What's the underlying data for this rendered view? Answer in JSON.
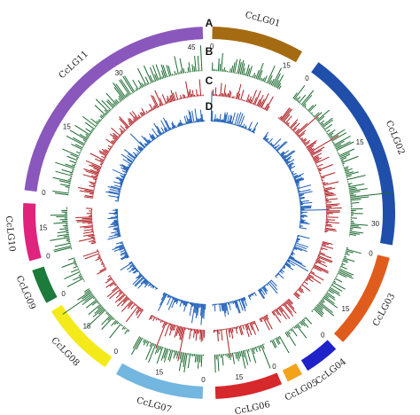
{
  "linkage_groups": [
    {
      "name": "CcLG01",
      "color": "#a56b12",
      "ticks": [
        "0",
        "15"
      ]
    },
    {
      "name": "CcLG02",
      "color": "#1f4faa",
      "ticks": [
        "0",
        "15",
        "30"
      ]
    },
    {
      "name": "CcLG03",
      "color": "#e05c1c",
      "ticks": [
        "0",
        "15"
      ]
    },
    {
      "name": "CcLG04",
      "color": "#1f22c8",
      "ticks": [
        "0"
      ]
    },
    {
      "name": "CcLG05",
      "color": "#f3a31a",
      "ticks": [
        "0"
      ]
    },
    {
      "name": "CcLG06",
      "color": "#d7282c",
      "ticks": [
        "0",
        "15"
      ]
    },
    {
      "name": "CcLG07",
      "color": "#73b6e0",
      "ticks": [
        "0",
        "15"
      ]
    },
    {
      "name": "CcLG08",
      "color": "#f4ea1a",
      "ticks": [
        "0",
        "15"
      ]
    },
    {
      "name": "CcLG09",
      "color": "#1c7a3b",
      "ticks": [
        "0"
      ]
    },
    {
      "name": "CcLG10",
      "color": "#e0237c",
      "ticks": [
        "0",
        "15"
      ]
    },
    {
      "name": "CcLG11",
      "color": "#8a57bd",
      "ticks": [
        "0",
        "15",
        "30",
        "45"
      ]
    }
  ],
  "tracks": [
    {
      "letter": "A",
      "color": "#7b4fb5"
    },
    {
      "letter": "B",
      "color": "#1c6b30"
    },
    {
      "letter": "C",
      "color": "#b01f24"
    },
    {
      "letter": "D",
      "color": "#1f5fb8"
    }
  ]
}
